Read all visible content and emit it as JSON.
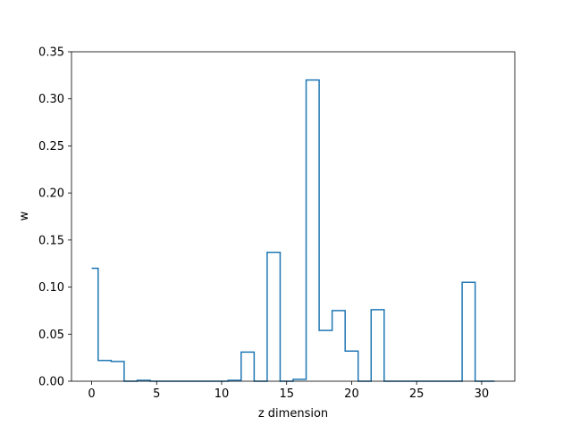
{
  "chart_data": {
    "type": "line",
    "drawstyle": "steps-mid",
    "xlabel": "z dimension",
    "ylabel": "w",
    "xlim": [
      -1.55,
      32.55
    ],
    "ylim": [
      0,
      0.35
    ],
    "x_ticks": [
      0,
      5,
      10,
      15,
      20,
      25,
      30
    ],
    "y_ticks": [
      0.0,
      0.05,
      0.1,
      0.15,
      0.2,
      0.25,
      0.3,
      0.35
    ],
    "grid": false,
    "line_color": "#1f77b4",
    "series": [
      {
        "x": [
          0,
          1,
          2,
          3,
          4,
          5,
          6,
          7,
          8,
          9,
          10,
          11,
          12,
          13,
          14,
          15,
          16,
          17,
          18,
          19,
          20,
          21,
          22,
          23,
          24,
          25,
          26,
          27,
          28,
          29,
          30,
          31
        ],
        "values": [
          0.12,
          0.022,
          0.021,
          0.0,
          0.001,
          0.0,
          0.0,
          0.0,
          0.0,
          0.0,
          0.0,
          0.001,
          0.031,
          0.0,
          0.137,
          0.0,
          0.002,
          0.32,
          0.054,
          0.075,
          0.032,
          0.0,
          0.076,
          0.0,
          0.0,
          0.0,
          0.0,
          0.0,
          0.0,
          0.105,
          0.0,
          0.0
        ]
      }
    ]
  }
}
